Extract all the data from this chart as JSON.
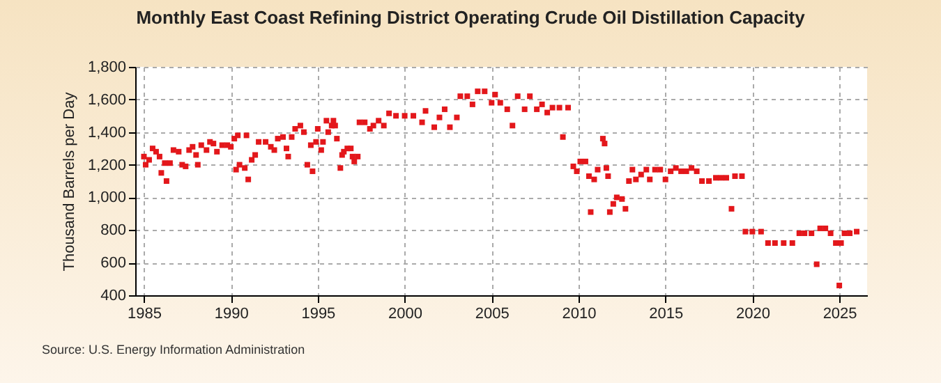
{
  "chart_data": {
    "type": "scatter",
    "title": "Monthly East Coast Refining District Operating Crude Oil Distillation Capacity",
    "ylabel": "Thousand Barrels per Day",
    "annotations": [
      "Source: U.S. Energy Information Administration"
    ],
    "x": [
      1985.0,
      1985.1,
      1985.3,
      1985.5,
      1985.7,
      1985.9,
      1986.0,
      1986.2,
      1986.3,
      1986.5,
      1986.7,
      1987.0,
      1987.2,
      1987.4,
      1987.6,
      1987.8,
      1988.0,
      1988.1,
      1988.3,
      1988.6,
      1988.8,
      1989.0,
      1989.2,
      1989.5,
      1989.8,
      1990.0,
      1990.2,
      1990.3,
      1990.4,
      1990.5,
      1990.8,
      1990.9,
      1991.0,
      1991.2,
      1991.4,
      1991.6,
      1992.0,
      1992.3,
      1992.5,
      1992.7,
      1993.0,
      1993.2,
      1993.3,
      1993.5,
      1993.7,
      1994.0,
      1994.2,
      1994.4,
      1994.6,
      1994.7,
      1994.9,
      1995.0,
      1995.2,
      1995.3,
      1995.5,
      1995.6,
      1995.8,
      1995.9,
      1996.0,
      1996.1,
      1996.3,
      1996.4,
      1996.5,
      1996.7,
      1996.9,
      1997.0,
      1997.1,
      1997.3,
      1997.4,
      1997.7,
      1998.0,
      1998.2,
      1998.5,
      1998.8,
      1999.1,
      1999.5,
      2000.0,
      2000.5,
      2001.0,
      2001.2,
      2001.7,
      2002.0,
      2002.3,
      2002.6,
      2003.0,
      2003.2,
      2003.6,
      2003.9,
      2004.2,
      2004.6,
      2005.0,
      2005.2,
      2005.5,
      2005.9,
      2006.2,
      2006.5,
      2006.9,
      2007.2,
      2007.6,
      2007.9,
      2008.2,
      2008.5,
      2008.9,
      2009.1,
      2009.4,
      2009.7,
      2009.9,
      2010.1,
      2010.4,
      2010.6,
      2010.7,
      2010.9,
      2011.1,
      2011.4,
      2011.5,
      2011.6,
      2011.7,
      2011.8,
      2012.0,
      2012.2,
      2012.5,
      2012.7,
      2012.9,
      2013.1,
      2013.3,
      2013.6,
      2013.9,
      2014.1,
      2014.4,
      2014.7,
      2015.0,
      2015.3,
      2015.6,
      2015.9,
      2016.2,
      2016.5,
      2016.8,
      2017.1,
      2017.5,
      2017.9,
      2018.2,
      2018.5,
      2018.8,
      2019.0,
      2019.4,
      2019.6,
      2020.0,
      2020.5,
      2020.9,
      2021.3,
      2021.8,
      2022.3,
      2022.7,
      2023.0,
      2023.4,
      2023.7,
      2023.9,
      2024.2,
      2024.5,
      2024.8,
      2025.0,
      2025.1,
      2025.3,
      2025.6,
      2026.0
    ],
    "values": [
      1250,
      1200,
      1230,
      1300,
      1280,
      1250,
      1150,
      1210,
      1100,
      1210,
      1290,
      1280,
      1200,
      1190,
      1290,
      1310,
      1260,
      1200,
      1320,
      1290,
      1340,
      1330,
      1280,
      1320,
      1320,
      1310,
      1360,
      1170,
      1380,
      1200,
      1180,
      1380,
      1110,
      1230,
      1260,
      1340,
      1340,
      1310,
      1290,
      1360,
      1370,
      1300,
      1250,
      1370,
      1420,
      1440,
      1400,
      1200,
      1320,
      1160,
      1340,
      1420,
      1290,
      1340,
      1470,
      1400,
      1440,
      1470,
      1440,
      1360,
      1180,
      1260,
      1280,
      1300,
      1300,
      1250,
      1220,
      1250,
      1460,
      1460,
      1420,
      1440,
      1470,
      1440,
      1515,
      1500,
      1500,
      1500,
      1460,
      1530,
      1430,
      1490,
      1540,
      1430,
      1490,
      1620,
      1620,
      1570,
      1650,
      1650,
      1580,
      1630,
      1580,
      1540,
      1440,
      1620,
      1540,
      1620,
      1540,
      1570,
      1520,
      1550,
      1550,
      1370,
      1550,
      1190,
      1160,
      1220,
      1220,
      1130,
      910,
      1110,
      1170,
      1360,
      1330,
      1180,
      1130,
      910,
      960,
      1000,
      990,
      930,
      1100,
      1170,
      1110,
      1140,
      1170,
      1110,
      1170,
      1170,
      1110,
      1160,
      1180,
      1160,
      1160,
      1180,
      1160,
      1100,
      1100,
      1120,
      1120,
      1120,
      930,
      1130,
      1130,
      790,
      790,
      790,
      720,
      720,
      720,
      720,
      780,
      780,
      780,
      590,
      810,
      810,
      780,
      720,
      460,
      720,
      780,
      780,
      790
    ],
    "color": "#e3171b",
    "marker": "square",
    "grid": true,
    "xlim": [
      1984.5,
      2026.6
    ],
    "xticks": [
      1985,
      1990,
      1995,
      2000,
      2005,
      2010,
      2015,
      2020,
      2025
    ],
    "ylim": [
      400,
      1800
    ],
    "yticks": [
      {
        "value": 400,
        "label": "400"
      },
      {
        "value": 600,
        "label": "600"
      },
      {
        "value": 800,
        "label": "800"
      },
      {
        "value": 1000,
        "label": "1,000"
      },
      {
        "value": 1200,
        "label": "1,200"
      },
      {
        "value": 1400,
        "label": "1,400"
      },
      {
        "value": 1600,
        "label": "1,600"
      },
      {
        "value": 1800,
        "label": "1,800"
      }
    ]
  }
}
